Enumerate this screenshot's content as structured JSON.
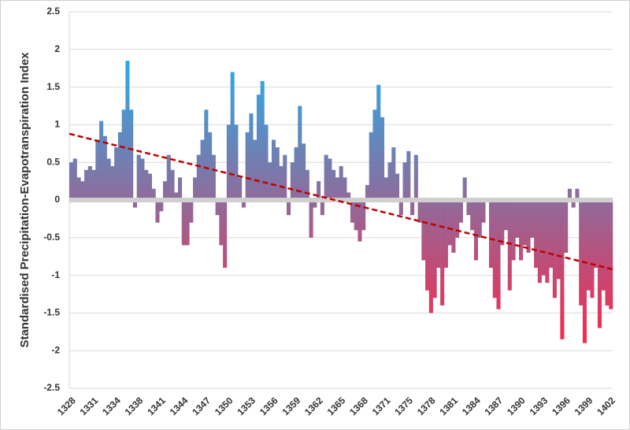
{
  "chart_data": {
    "type": "bar",
    "y_label": "Standardised Precipitation-Evapotranspiration Index",
    "categories": [
      "1328",
      null,
      null,
      null,
      null,
      null,
      "1331",
      null,
      null,
      null,
      null,
      null,
      "1334",
      null,
      null,
      null,
      null,
      null,
      "1338",
      null,
      null,
      null,
      null,
      null,
      "1341",
      null,
      null,
      null,
      null,
      null,
      "1344",
      null,
      null,
      null,
      null,
      null,
      "1347",
      null,
      null,
      null,
      null,
      null,
      "1350",
      null,
      null,
      null,
      null,
      null,
      "1353",
      null,
      null,
      null,
      null,
      null,
      "1356",
      null,
      null,
      null,
      null,
      null,
      "1359",
      null,
      null,
      null,
      null,
      null,
      "1362",
      null,
      null,
      null,
      null,
      null,
      "1365",
      null,
      null,
      null,
      null,
      null,
      "1368",
      null,
      null,
      null,
      null,
      null,
      "1371",
      null,
      null,
      null,
      null,
      null,
      "1375",
      null,
      null,
      null,
      null,
      null,
      "1378",
      null,
      null,
      null,
      null,
      null,
      "1381",
      null,
      null,
      null,
      null,
      null,
      "1384",
      null,
      null,
      null,
      null,
      null,
      "1387",
      null,
      null,
      null,
      null,
      null,
      "1390",
      null,
      null,
      null,
      null,
      null,
      "1393",
      null,
      null,
      null,
      null,
      null,
      "1396",
      null,
      null,
      null,
      null,
      null,
      "1399",
      null,
      null,
      null,
      null,
      null,
      "1402"
    ],
    "values": [
      0.5,
      0.55,
      0.3,
      0.25,
      0.4,
      0.45,
      0.4,
      0.8,
      1.05,
      0.85,
      0.55,
      0.45,
      0.7,
      0.9,
      1.2,
      1.85,
      1.2,
      -0.1,
      0.6,
      0.55,
      0.4,
      0.35,
      0.15,
      -0.3,
      -0.15,
      0.25,
      0.6,
      0.4,
      0.1,
      0.3,
      -0.6,
      -0.6,
      -0.3,
      0.3,
      0.6,
      0.8,
      1.2,
      0.9,
      0.6,
      -0.2,
      -0.6,
      -0.9,
      1.0,
      1.7,
      1.0,
      0.3,
      -0.1,
      0.9,
      1.15,
      0.8,
      1.4,
      1.58,
      1.0,
      0.5,
      0.8,
      0.7,
      0.45,
      0.6,
      -0.2,
      0.5,
      0.7,
      1.25,
      0.75,
      0.4,
      -0.5,
      -0.1,
      0.25,
      -0.2,
      0.6,
      0.55,
      0.4,
      0.3,
      0.45,
      0.3,
      0.1,
      -0.3,
      -0.4,
      -0.55,
      -0.4,
      0.2,
      0.9,
      1.2,
      1.53,
      1.1,
      0.3,
      0.5,
      0.7,
      0.35,
      -0.2,
      0.5,
      0.65,
      -0.2,
      0.6,
      -0.3,
      -0.8,
      -1.2,
      -1.5,
      -1.3,
      -0.9,
      -1.4,
      -0.9,
      -0.6,
      -0.7,
      -0.5,
      -0.3,
      0.3,
      -0.2,
      -0.4,
      -0.8,
      -0.5,
      -0.3,
      0.02,
      -0.9,
      -1.3,
      -1.45,
      -0.6,
      -0.4,
      -1.2,
      -0.8,
      -0.5,
      -0.8,
      -0.6,
      -0.7,
      -0.5,
      -0.9,
      -1.1,
      -1.0,
      -1.1,
      -0.9,
      -1.3,
      -1.05,
      -1.85,
      -0.7,
      0.15,
      -0.1,
      0.15,
      -1.4,
      -1.9,
      -1.2,
      -1.3,
      -0.9,
      -1.7,
      -1.2,
      -1.4,
      -1.45
    ],
    "gradient": [
      "#1fb2ee",
      "#ff2448"
    ],
    "trend_line": {
      "values": [
        0.88,
        -0.92
      ],
      "color": "#c00000"
    },
    "ylim": [
      -2.5,
      2.5
    ],
    "yticks": [
      -2.5,
      -2,
      -1.5,
      -1,
      -0.5,
      0,
      0.5,
      1,
      1.5,
      2,
      2.5
    ],
    "grid": true
  }
}
